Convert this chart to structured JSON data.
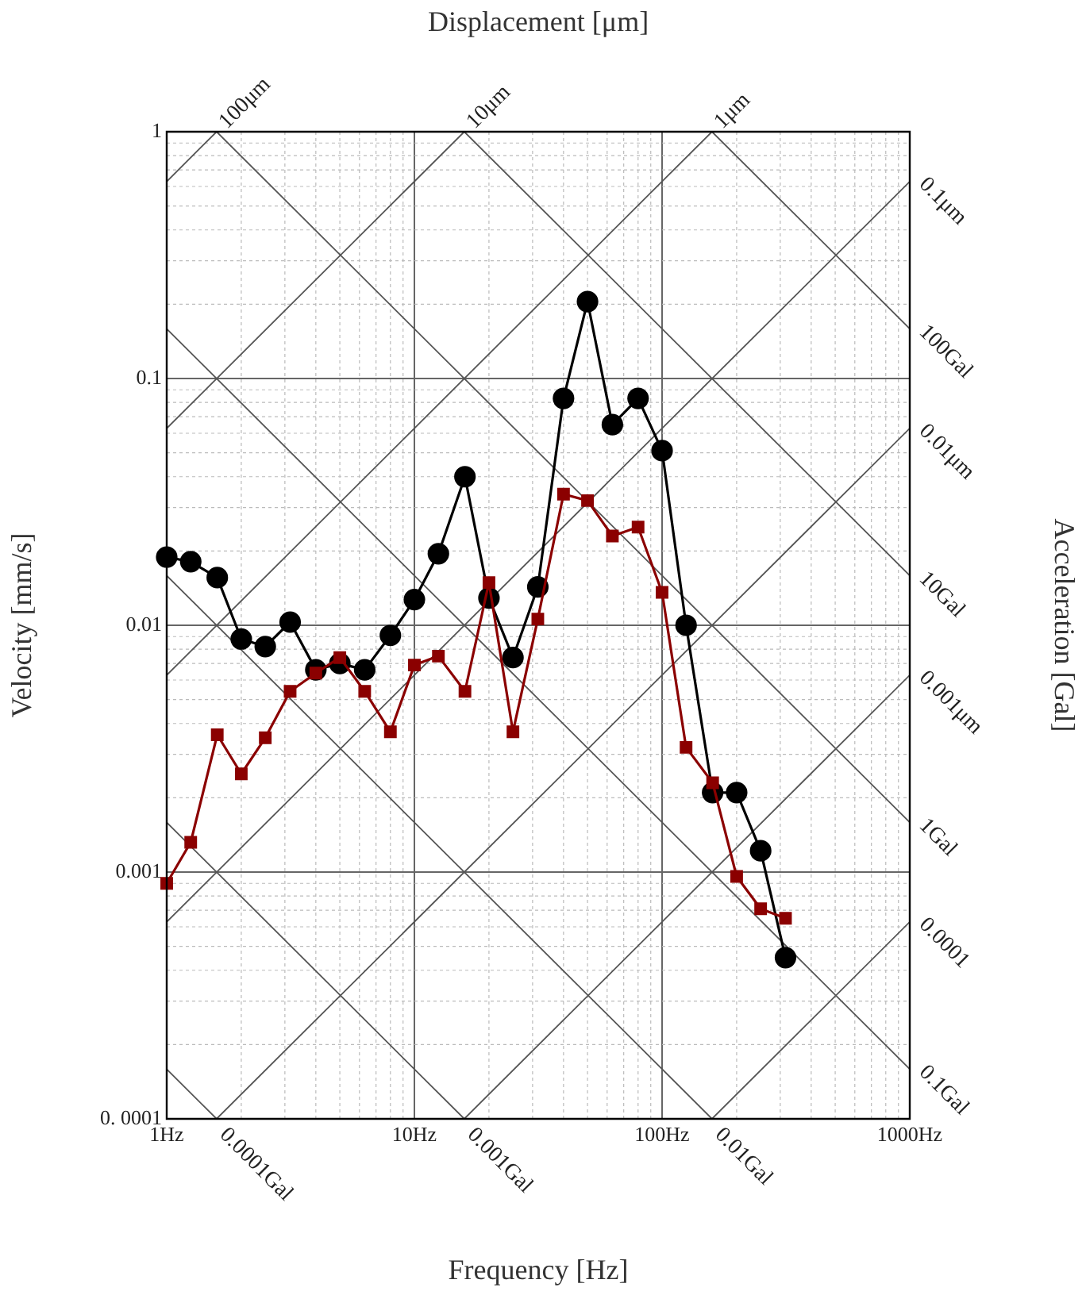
{
  "chart_data": {
    "type": "line",
    "xlabel": "Frequency [Hz]",
    "ylabel": "Velocity [mm/s]",
    "x2label": "Displacement [μm]",
    "y2label": "Acceleration [Gal]",
    "x": [
      1,
      1.25,
      1.6,
      2,
      2.5,
      3.15,
      4,
      5,
      6.3,
      8,
      10,
      12.5,
      16,
      20,
      25,
      31.5,
      40,
      50,
      63,
      80,
      100,
      125,
      160,
      200,
      250,
      315
    ],
    "series": [
      {
        "color": "#000000",
        "marker": "circle",
        "values": [
          0.0189,
          0.0181,
          0.0156,
          0.0088,
          0.0082,
          0.0103,
          0.0066,
          0.007,
          0.0066,
          0.0091,
          0.0127,
          0.0195,
          0.04,
          0.0129,
          0.0074,
          0.0143,
          0.083,
          0.205,
          0.065,
          0.083,
          0.051,
          0.01,
          0.0021,
          0.0021,
          0.00122,
          0.00045
        ]
      },
      {
        "color": "#8b0000",
        "marker": "square",
        "values": [
          0.0009,
          0.00132,
          0.0036,
          0.0025,
          0.0035,
          0.0054,
          0.0064,
          0.0074,
          0.0054,
          0.0037,
          0.0069,
          0.0075,
          0.0054,
          0.0149,
          0.0037,
          0.0106,
          0.034,
          0.032,
          0.023,
          0.025,
          0.0136,
          0.0032,
          0.0023,
          0.00096,
          0.00071,
          0.00065
        ]
      },
      {
        "type": "line",
        "color": "#555555",
        "marker": "none",
        "x": [
          1,
          1.59,
          null,
          1,
          15.9,
          null,
          1,
          159,
          null,
          1,
          1000,
          null,
          1.59,
          1000,
          null,
          15.9,
          1000,
          null,
          159,
          1000
        ],
        "values": [
          0.628,
          1,
          null,
          0.0628,
          1,
          null,
          0.00628,
          1,
          null,
          0.000628,
          0.628,
          null,
          0.0001,
          0.0628,
          null,
          0.0001,
          0.00628,
          null,
          0.0001,
          0.000628
        ]
      },
      {
        "type": "line",
        "color": "#555555",
        "marker": "none",
        "x": [
          159,
          1000,
          null,
          15.9,
          1000,
          null,
          1.59,
          1000,
          null,
          1,
          1000,
          null,
          1,
          159,
          null,
          1,
          15.9,
          null,
          1,
          1.59
        ],
        "values": [
          1,
          0.159,
          null,
          1,
          0.0159,
          null,
          1,
          0.00159,
          null,
          0.159,
          0.000159,
          null,
          0.0159,
          0.0001,
          null,
          0.00159,
          0.0001,
          null,
          0.000159,
          0.0001
        ]
      }
    ],
    "log": "xy",
    "xlim": [
      1,
      1000
    ],
    "ylim": [
      0.0001,
      1
    ],
    "xticks": [
      {
        "value": 1,
        "label": "1Hz"
      },
      {
        "value": 10,
        "label": "10Hz"
      },
      {
        "value": 100,
        "label": "100Hz"
      },
      {
        "value": 1000,
        "label": "1000Hz"
      }
    ],
    "yticks": [
      {
        "value": 0.0001,
        "label": "0. 0001"
      },
      0.001,
      0.01,
      0.1,
      1
    ],
    "grid": true,
    "legend": false,
    "annotations": [
      {
        "text": "100μm",
        "x": 1.59,
        "y": 1
      },
      {
        "text": "10μm",
        "x": 15.9,
        "y": 1
      },
      {
        "text": "1μm",
        "x": 159,
        "y": 1
      },
      {
        "text": "0.1μm",
        "x": 1000,
        "y": 0.63
      },
      {
        "text": "0.01μm",
        "x": 1000,
        "y": 0.063
      },
      {
        "text": "0.001μm",
        "x": 1000,
        "y": 0.0063
      },
      {
        "text": "0.0001",
        "x": 1000,
        "y": 0.00063
      },
      {
        "text": "100Gal",
        "x": 1000,
        "y": 0.159
      },
      {
        "text": "10Gal",
        "x": 1000,
        "y": 0.0159
      },
      {
        "text": "1Gal",
        "x": 1000,
        "y": 0.00159
      },
      {
        "text": "0.1Gal",
        "x": 1000,
        "y": 0.000159
      },
      {
        "text": "0.0001Gal",
        "x": 1.59,
        "y": 0.0001
      },
      {
        "text": "0.001Gal",
        "x": 15.9,
        "y": 0.0001
      },
      {
        "text": "0.01Gal",
        "x": 159,
        "y": 0.0001
      }
    ]
  }
}
